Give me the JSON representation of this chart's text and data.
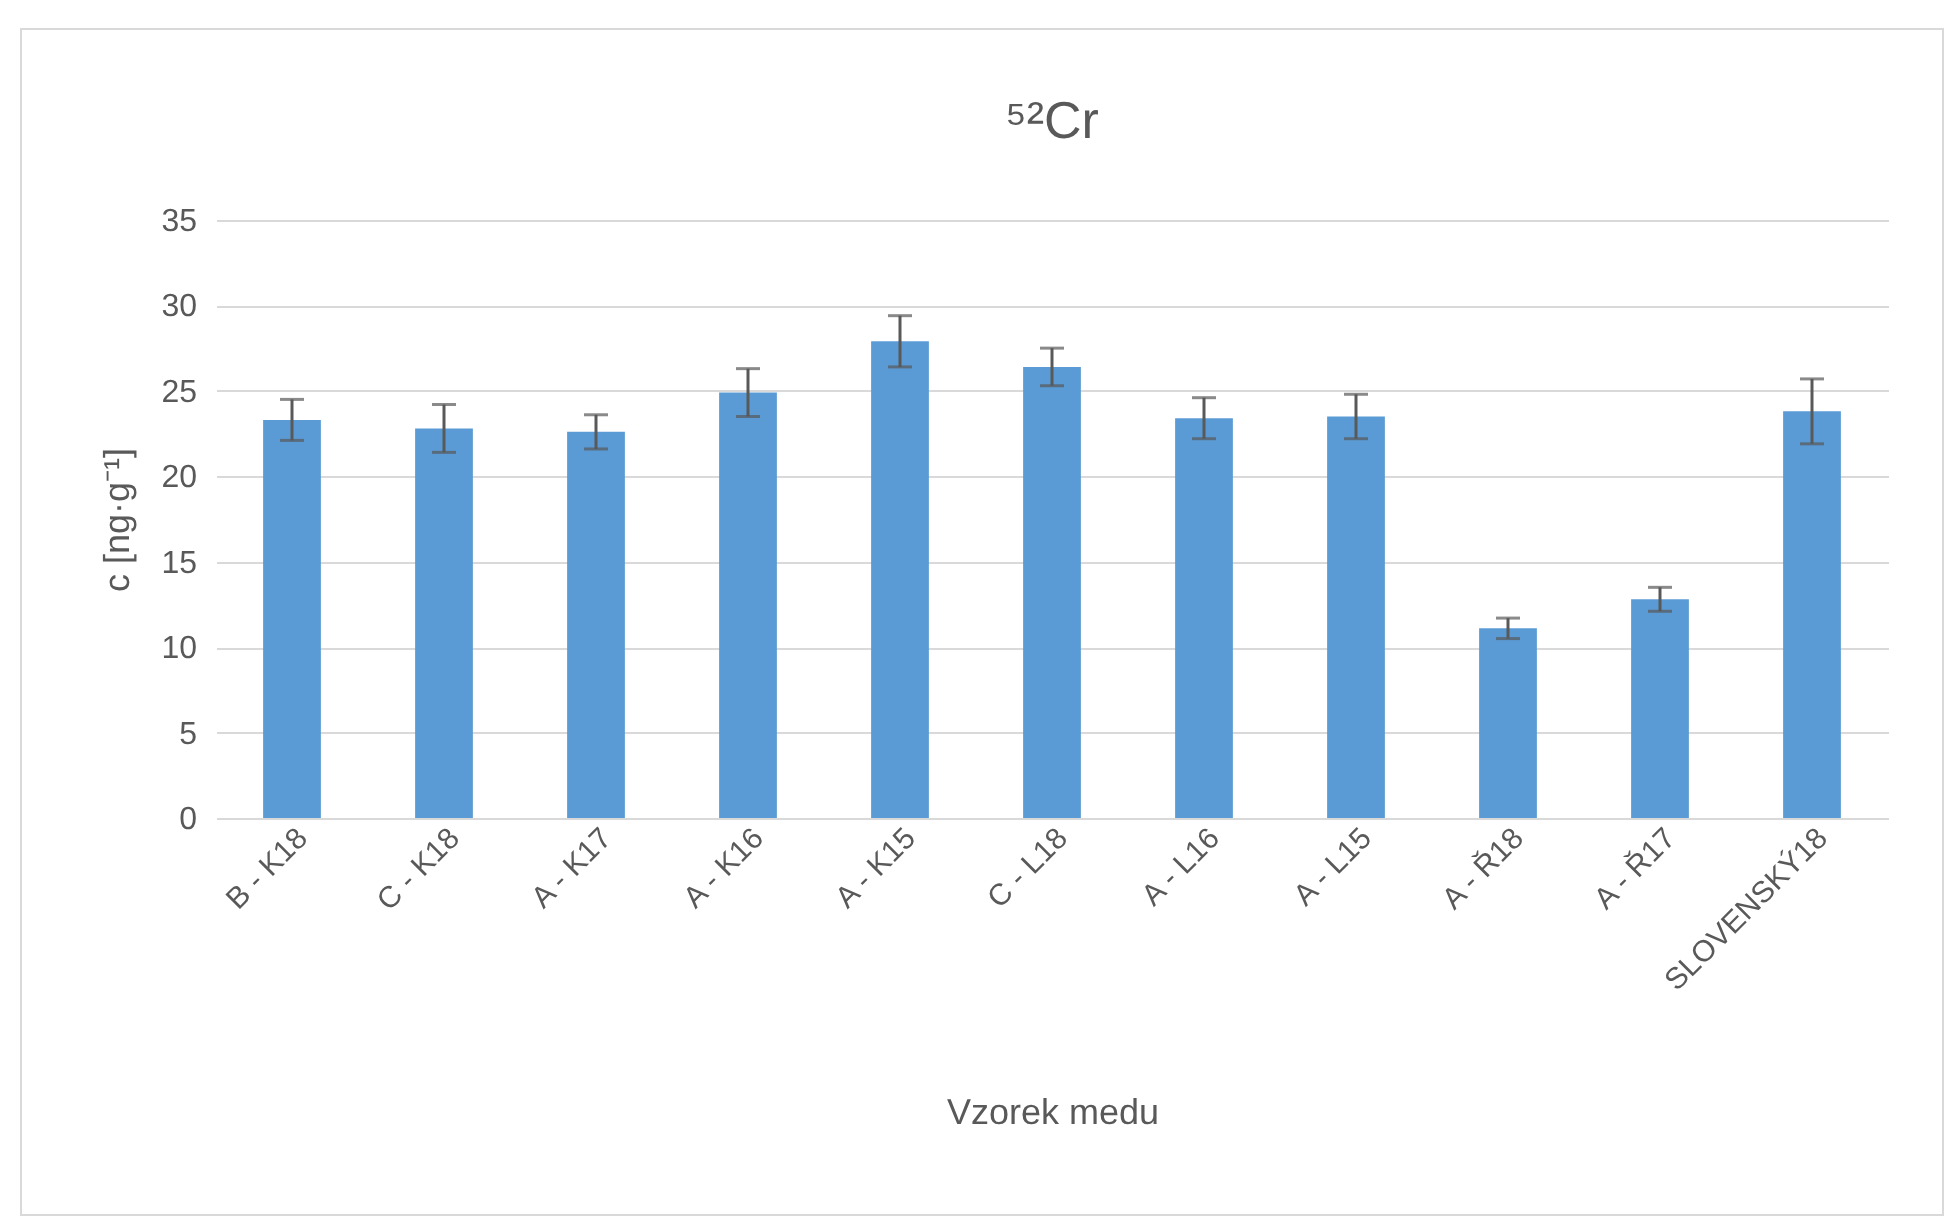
{
  "chart_data": {
    "type": "bar",
    "title": "⁵²Cr",
    "xlabel": "Vzorek medu",
    "ylabel": "c [ng·g⁻¹]",
    "categories": [
      "B - K18",
      "C - K18",
      "A - K17",
      "A - K16",
      "A - K15",
      "C - L18",
      "A - L16",
      "A - L15",
      "A - Ř18",
      "A - Ř17",
      "SLOVENSKÝ18"
    ],
    "values": [
      23.3,
      22.8,
      22.6,
      24.9,
      27.9,
      26.4,
      23.4,
      23.5,
      11.1,
      12.8,
      23.8
    ],
    "errors": [
      1.2,
      1.4,
      1.0,
      1.4,
      1.5,
      1.1,
      1.2,
      1.3,
      0.6,
      0.7,
      1.9
    ],
    "color": "#5b9bd5",
    "ylim": [
      0,
      35
    ],
    "yticks": [
      0,
      5,
      10,
      15,
      20,
      25,
      30,
      35
    ],
    "grid": "y"
  }
}
